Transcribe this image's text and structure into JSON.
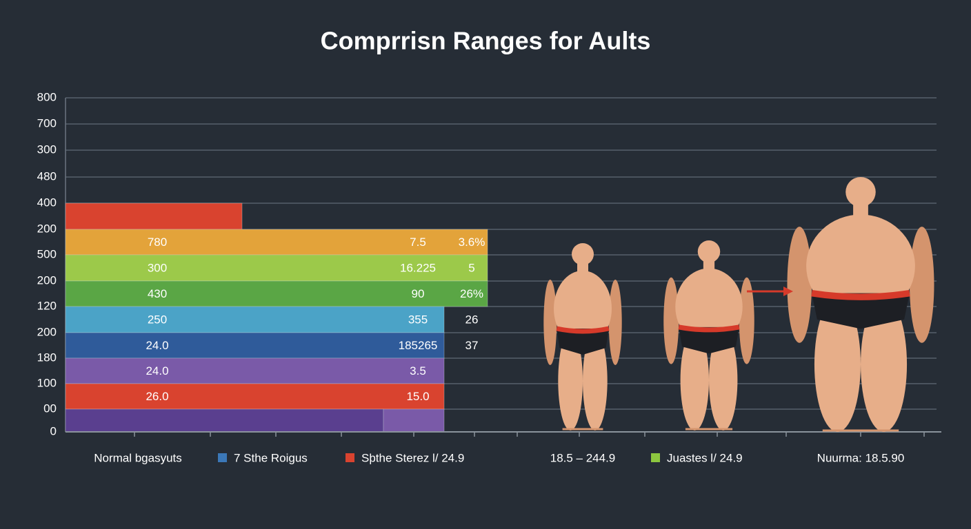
{
  "title": "Comprrisn Ranges for Aults",
  "y_axis_labels": [
    "800",
    "700",
    "300",
    "480",
    "400",
    "200",
    "500",
    "200",
    "120",
    "200",
    "180",
    "100",
    "00",
    "0"
  ],
  "bars": [
    {
      "colors": [
        "#d9432f"
      ],
      "labels": []
    },
    {
      "colors": [
        "#e3a33a"
      ],
      "labels": [
        "780",
        "7.5",
        "3.6%"
      ]
    },
    {
      "colors": [
        "#9cc94a"
      ],
      "labels": [
        "300",
        "16.225",
        "5"
      ]
    },
    {
      "colors": [
        "#5aa645"
      ],
      "labels": [
        "430",
        "90",
        "26%"
      ]
    },
    {
      "colors": [
        "#4ba3c7"
      ],
      "labels": [
        "250",
        "355",
        "26"
      ]
    },
    {
      "colors": [
        "#2f5b9a"
      ],
      "labels": [
        "24.0",
        "185265",
        "37"
      ]
    },
    {
      "colors": [
        "#7a5aa8"
      ],
      "labels": [
        "24.0",
        "3.5"
      ]
    },
    {
      "colors": [
        "#d9432f"
      ],
      "labels": [
        "26.0",
        "15.0"
      ]
    },
    {
      "colors": [
        "#5a3f8f",
        "#7a5aa8"
      ],
      "labels": []
    }
  ],
  "legend": [
    {
      "label": "Normal bgasyuts"
    },
    {
      "label": "7 Sthe Roigus",
      "color": "#3b78b8"
    },
    {
      "label": "Sþthe Sterez l/ 24.9",
      "color": "#d9432f"
    },
    {
      "label": "18.5 – 244.9"
    },
    {
      "label": "Juastes l/ 24.9",
      "color": "#8cc63f"
    },
    {
      "label": "Nuurma: 18.5.90"
    }
  ]
}
